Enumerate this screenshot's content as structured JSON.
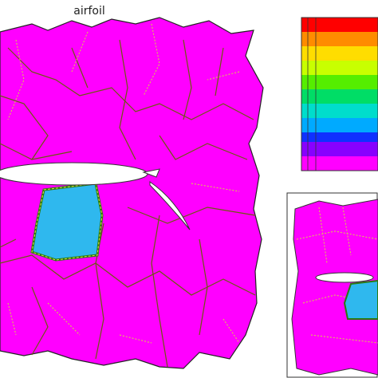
{
  "title": "airfoil"
}
